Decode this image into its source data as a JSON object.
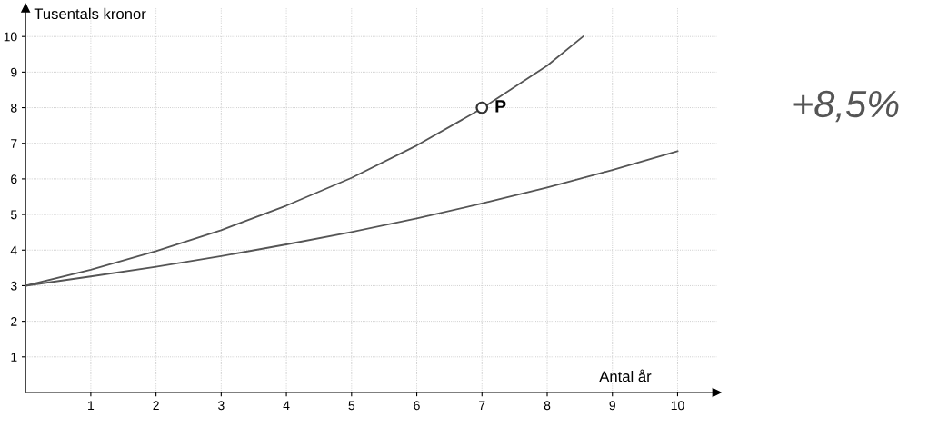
{
  "chart_data": {
    "type": "line",
    "xlabel": "Antal år",
    "ylabel": "Tusentals kronor",
    "series": [
      {
        "color": "#555555",
        "x": [
          0,
          1,
          2,
          3,
          4,
          5,
          6,
          7,
          8,
          8.55
        ],
        "values": [
          3,
          3.45,
          3.97,
          4.56,
          5.25,
          6.03,
          6.94,
          7.98,
          9.18,
          10
        ]
      },
      {
        "color": "#555555",
        "x": [
          0,
          1,
          2,
          3,
          4,
          5,
          6,
          7,
          8,
          9,
          10
        ],
        "values": [
          3,
          3.26,
          3.53,
          3.83,
          4.16,
          4.51,
          4.89,
          5.31,
          5.76,
          6.25,
          6.78
        ]
      },
      {
        "type": "scatter",
        "color": "#333333",
        "marker": "circle",
        "x": [
          7
        ],
        "values": [
          8
        ]
      }
    ],
    "xlim": [
      0,
      10.6
    ],
    "ylim": [
      0,
      10.8
    ],
    "xticks": [
      1,
      2,
      3,
      4,
      5,
      6,
      7,
      8,
      9,
      10
    ],
    "yticks": [
      1,
      2,
      3,
      4,
      5,
      6,
      7,
      8,
      9,
      10
    ],
    "grid": true,
    "annotations": [
      {
        "text": "P",
        "x": 7,
        "y": 8
      },
      "+8,5%"
    ]
  }
}
